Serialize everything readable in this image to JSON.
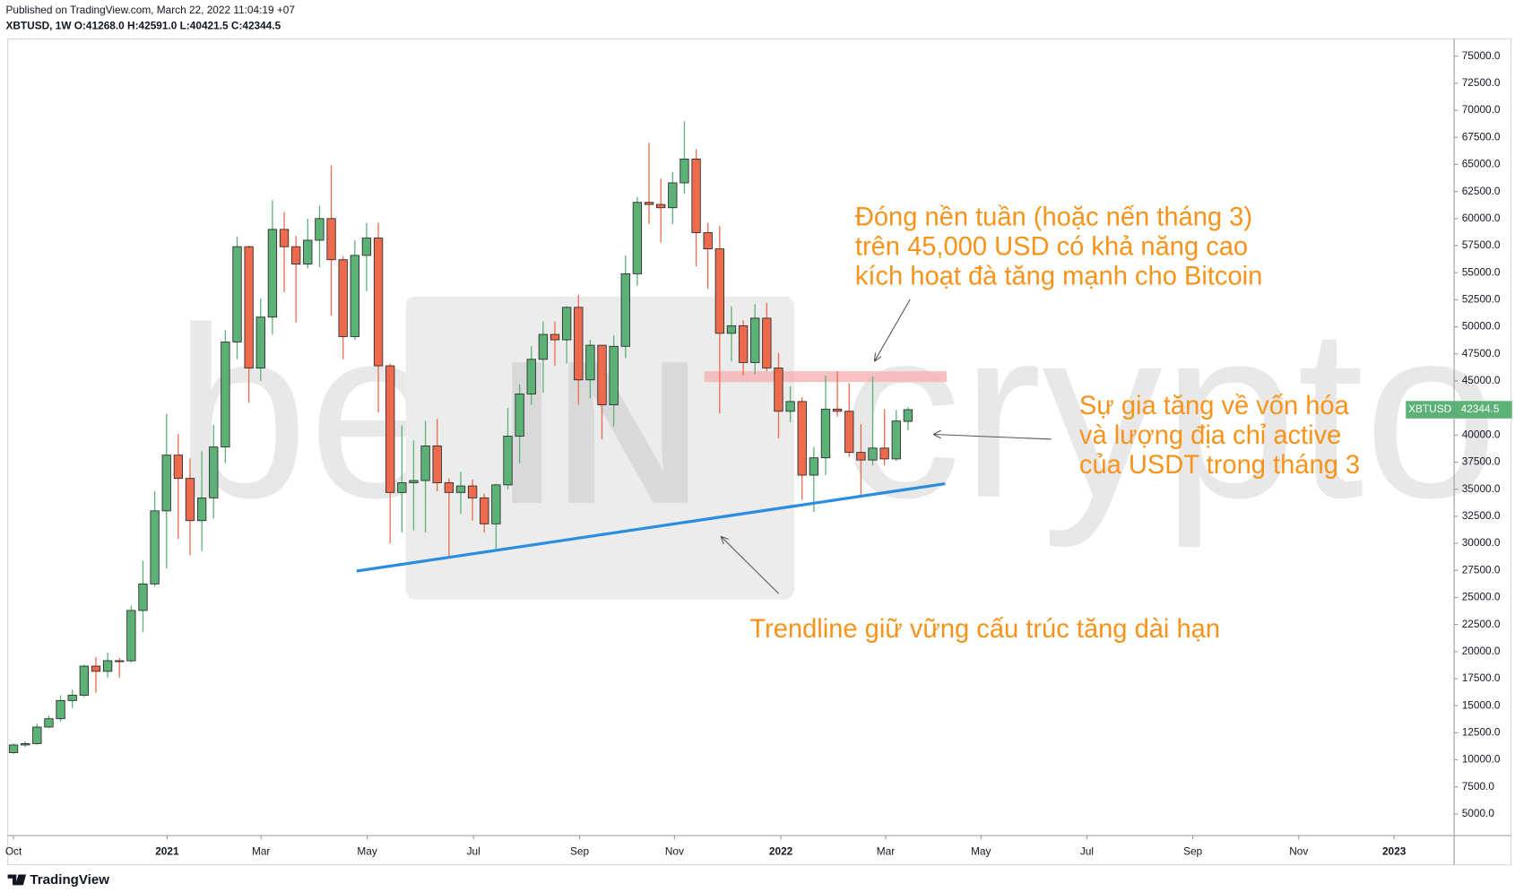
{
  "chart_data": {
    "type": "candlestick",
    "published": "Published on TradingView.com, March 22, 2022 11:04:19 +07",
    "legend_text": "XBTUSD, 1W O:41268.0 H:42591.0 L:40421.5 C:42344.5",
    "symbol": "XBTUSD",
    "brand": "TradingView",
    "up_color": "#5cb176",
    "down_color": "#ee6a4c",
    "open": [
      10670,
      11380,
      11500,
      13030,
      13800,
      15480,
      15970,
      18660,
      18180,
      19160,
      19150,
      23800,
      26250,
      33000,
      38150,
      36000,
      32100,
      34200,
      38900,
      48600,
      57400,
      46200,
      50900,
      59000,
      57400,
      55800,
      58000,
      60000,
      56200,
      49100,
      56600,
      58200,
      46400,
      34700,
      35600,
      35800,
      39000,
      35600,
      34700,
      35300,
      34200,
      31800,
      35400,
      39900,
      43800,
      47000,
      49300,
      48800,
      51800,
      45100,
      48300,
      42800,
      48200,
      54900,
      61500,
      61300,
      61000,
      63300,
      65500,
      58700,
      57200,
      49400,
      50100,
      46700,
      50800,
      46200,
      42200,
      43100,
      36300,
      37900,
      42400,
      42200,
      38400,
      37700,
      38800,
      37800,
      41268
    ],
    "high": [
      11500,
      11720,
      13350,
      14100,
      15960,
      16480,
      18800,
      19480,
      19900,
      19420,
      24250,
      28400,
      34800,
      41950,
      40100,
      37850,
      38500,
      40950,
      49700,
      58350,
      57500,
      52600,
      61700,
      60600,
      58400,
      60000,
      61200,
      64900,
      56500,
      58000,
      59600,
      59600,
      46600,
      40900,
      39500,
      41300,
      41500,
      36000,
      36600,
      35900,
      34600,
      35500,
      42500,
      44700,
      48200,
      50500,
      50500,
      51900,
      52950,
      48800,
      48300,
      49200,
      56600,
      62000,
      67000,
      63700,
      64300,
      69000,
      66400,
      59600,
      59300,
      51900,
      50600,
      52100,
      52200,
      47600,
      44500,
      43500,
      38900,
      45500,
      45900,
      44800,
      41000,
      45400,
      42400,
      42300,
      42591
    ],
    "low": [
      10550,
      11200,
      11400,
      12950,
      13550,
      14800,
      15800,
      16200,
      17600,
      17600,
      19000,
      21800,
      26000,
      27700,
      30400,
      28900,
      29300,
      32300,
      37400,
      47000,
      43000,
      45000,
      49300,
      53200,
      50400,
      55400,
      55500,
      51000,
      47000,
      48800,
      53300,
      42100,
      30000,
      31000,
      31200,
      31000,
      34800,
      28800,
      32700,
      32100,
      31000,
      29300,
      35000,
      37400,
      42800,
      43900,
      46400,
      46600,
      42800,
      43400,
      39600,
      40800,
      47100,
      53800,
      59500,
      57800,
      59500,
      62300,
      55600,
      53500,
      42000,
      46800,
      45500,
      45600,
      45900,
      39700,
      41200,
      34000,
      32900,
      36300,
      41700,
      38000,
      34300,
      37200,
      37200,
      37600,
      40421.5
    ],
    "close": [
      11380,
      11500,
      13030,
      13800,
      15480,
      15970,
      18660,
      18180,
      19160,
      19150,
      23800,
      26250,
      33000,
      38150,
      36000,
      32100,
      34200,
      38900,
      48600,
      57400,
      46200,
      50900,
      59000,
      57400,
      55800,
      58000,
      60000,
      56200,
      49100,
      56600,
      58200,
      46400,
      34700,
      35600,
      35800,
      39000,
      35600,
      34700,
      35300,
      34200,
      31800,
      35400,
      39900,
      43800,
      47000,
      49300,
      48800,
      51800,
      45100,
      48300,
      42800,
      48200,
      54900,
      61500,
      61300,
      61000,
      63300,
      65500,
      58700,
      57200,
      49400,
      50100,
      46700,
      50800,
      46200,
      42200,
      43100,
      36300,
      37900,
      42400,
      42200,
      38400,
      37700,
      38800,
      37800,
      41300,
      42344.5
    ],
    "xlim": [
      -0.49,
      122.4
    ],
    "xticks": [
      {
        "value": 0,
        "label": "Oct"
      },
      {
        "value": 13.05,
        "label": "2021"
      },
      {
        "value": 21.03,
        "label": "Mar"
      },
      {
        "value": 30.05,
        "label": "May"
      },
      {
        "value": 39.08,
        "label": "Jul"
      },
      {
        "value": 48.1,
        "label": "Sep"
      },
      {
        "value": 56.16,
        "label": "Nov"
      },
      {
        "value": 65.2,
        "label": "2022"
      },
      {
        "value": 74.1,
        "label": "Mar"
      },
      {
        "value": 82.2,
        "label": "May"
      },
      {
        "value": 91.2,
        "label": "Jul"
      },
      {
        "value": 100.2,
        "label": "Sep"
      },
      {
        "value": 109.2,
        "label": "Nov"
      },
      {
        "value": 117.3,
        "label": "2023"
      }
    ],
    "ylim": [
      3000,
      76600
    ],
    "yticks": [
      {
        "value": 5000,
        "label": "5000.0"
      },
      {
        "value": 7500,
        "label": "7500.0"
      },
      {
        "value": 10000,
        "label": "10000.0"
      },
      {
        "value": 12500,
        "label": "12500.0"
      },
      {
        "value": 15000,
        "label": "15000.0"
      },
      {
        "value": 17500,
        "label": "17500.0"
      },
      {
        "value": 20000,
        "label": "20000.0"
      },
      {
        "value": 22500,
        "label": "22500.0"
      },
      {
        "value": 25000,
        "label": "25000.0"
      },
      {
        "value": 27500,
        "label": "27500.0"
      },
      {
        "value": 30000,
        "label": "30000.0"
      },
      {
        "value": 32500,
        "label": "32500.0"
      },
      {
        "value": 35000,
        "label": "35000.0"
      },
      {
        "value": 37500,
        "label": "37500.0"
      },
      {
        "value": 40000,
        "label": "40000.0"
      },
      {
        "value": 42500,
        "label": "42500.0"
      },
      {
        "value": 45000,
        "label": "45000.0"
      },
      {
        "value": 47500,
        "label": "47500.0"
      },
      {
        "value": 50000,
        "label": "50000.0"
      },
      {
        "value": 52500,
        "label": "52500.0"
      },
      {
        "value": 55000,
        "label": "55000.0"
      },
      {
        "value": 57500,
        "label": "57500.0"
      },
      {
        "value": 60000,
        "label": "60000.0"
      },
      {
        "value": 62500,
        "label": "62500.0"
      },
      {
        "value": 65000,
        "label": "65000.0"
      },
      {
        "value": 67500,
        "label": "67500.0"
      },
      {
        "value": 70000,
        "label": "70000.0"
      },
      {
        "value": 72500,
        "label": "72500.0"
      },
      {
        "value": 75000,
        "label": "75000.0"
      }
    ],
    "trendline": {
      "x": [
        29.15,
        79.15
      ],
      "y": [
        27440,
        35510
      ],
      "color": "#2a8de0"
    },
    "zone": {
      "x": [
        58.7,
        79.3
      ],
      "y": [
        44900,
        45900
      ],
      "color": "#f7b6b6"
    },
    "annotation_color": "#f7931a",
    "annotations": [
      {
        "lines": [
          "Đóng nền tuần (hoặc nến tháng 3)",
          "trên 45,000 USD có khả năng cao",
          "kích hoạt đà tăng mạnh cho Bitcoin"
        ]
      },
      {
        "lines": [
          "Sự gia tăng về vốn hóa",
          "và lượng địa chỉ active",
          "của USDT trong tháng 3"
        ]
      },
      {
        "lines": [
          "Trendline giữ vững cấu trúc tăng dài hạn"
        ]
      }
    ],
    "watermark": {
      "left": "be",
      "center": "IN",
      "right": "crypto"
    }
  }
}
